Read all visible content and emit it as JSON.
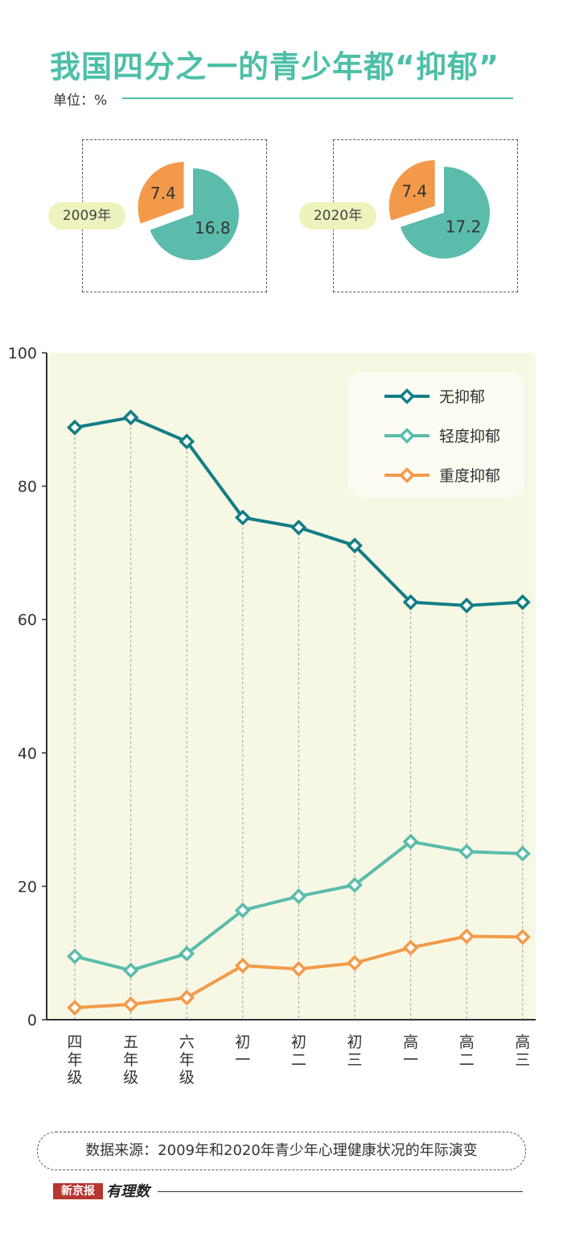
{
  "title": "我国四分之一的青少年都“抑郁”",
  "unit_label": "单位：%",
  "pies": [
    {
      "year": "2009年",
      "slices": [
        {
          "label": "7.4",
          "value": 7.4,
          "color": "#f39a4a"
        },
        {
          "label": "16.8",
          "value": 16.8,
          "color": "#5bbcab"
        }
      ]
    },
    {
      "year": "2020年",
      "slices": [
        {
          "label": "7.4",
          "value": 7.4,
          "color": "#f39a4a"
        },
        {
          "label": "17.2",
          "value": 17.2,
          "color": "#5bbcab"
        }
      ]
    }
  ],
  "chart_data": {
    "type": "line",
    "categories": [
      "四年级",
      "五年级",
      "六年级",
      "初一",
      "初二",
      "初三",
      "高一",
      "高二",
      "高三"
    ],
    "ylim": [
      0,
      100
    ],
    "yticks": [
      0,
      20,
      40,
      60,
      80,
      100
    ],
    "legend_position": "top-right",
    "series": [
      {
        "name": "无抑郁",
        "color": "#127e85",
        "values": [
          88.8,
          90.3,
          86.7,
          75.3,
          73.8,
          71.1,
          62.6,
          62.1,
          62.6
        ]
      },
      {
        "name": "轻度抑郁",
        "color": "#5bbcab",
        "values": [
          9.5,
          7.4,
          9.9,
          16.4,
          18.5,
          20.2,
          26.7,
          25.2,
          24.9
        ]
      },
      {
        "name": "重度抑郁",
        "color": "#f39a4a",
        "values": [
          1.8,
          2.3,
          3.3,
          8.1,
          7.6,
          8.5,
          10.8,
          12.5,
          12.4
        ]
      }
    ]
  },
  "source": "数据来源：2009年和2020年青少年心理健康状况的年际演变",
  "logo": {
    "brand": "新京报",
    "column": "有理数"
  }
}
